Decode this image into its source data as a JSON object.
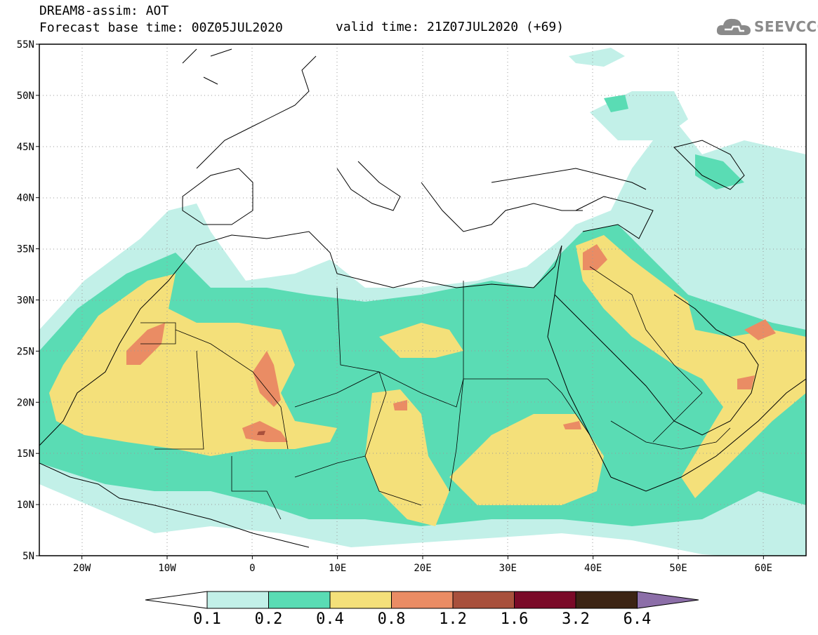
{
  "header": {
    "title": "DREAM8-assim: AOT",
    "base_time": "Forecast base time: 00Z05JUL2020",
    "valid_time": "valid time: 21Z07JUL2020 (+69)",
    "logo_text": "SEEVCCC",
    "logo_icon": "cloud-icon"
  },
  "map": {
    "lon_range": [
      -25,
      65
    ],
    "lat_range": [
      5,
      55
    ],
    "lon_ticks": [
      {
        "value": -20,
        "label": "20W"
      },
      {
        "value": -10,
        "label": "10W"
      },
      {
        "value": 0,
        "label": "0"
      },
      {
        "value": 10,
        "label": "10E"
      },
      {
        "value": 20,
        "label": "20E"
      },
      {
        "value": 30,
        "label": "30E"
      },
      {
        "value": 40,
        "label": "40E"
      },
      {
        "value": 50,
        "label": "50E"
      },
      {
        "value": 60,
        "label": "60E"
      }
    ],
    "lat_ticks": [
      {
        "value": 55,
        "label": "55N"
      },
      {
        "value": 50,
        "label": "50N"
      },
      {
        "value": 45,
        "label": "45N"
      },
      {
        "value": 40,
        "label": "40N"
      },
      {
        "value": 35,
        "label": "35N"
      },
      {
        "value": 30,
        "label": "30N"
      },
      {
        "value": 25,
        "label": "25N"
      },
      {
        "value": 20,
        "label": "20N"
      },
      {
        "value": 15,
        "label": "15N"
      },
      {
        "value": 10,
        "label": "10N"
      },
      {
        "value": 5,
        "label": "5N"
      }
    ],
    "grid": "dotted"
  },
  "colorbar": {
    "labels": [
      "0.1",
      "0.2",
      "0.4",
      "0.8",
      "1.2",
      "1.6",
      "3.2",
      "6.4"
    ],
    "colors": [
      "#c2f0e8",
      "#5adcb4",
      "#f4e07a",
      "#ea8c64",
      "#a8503c",
      "#7a0a28",
      "#3c2414"
    ],
    "under_color": "#ffffff",
    "over_color": "#8c6ea8"
  }
}
